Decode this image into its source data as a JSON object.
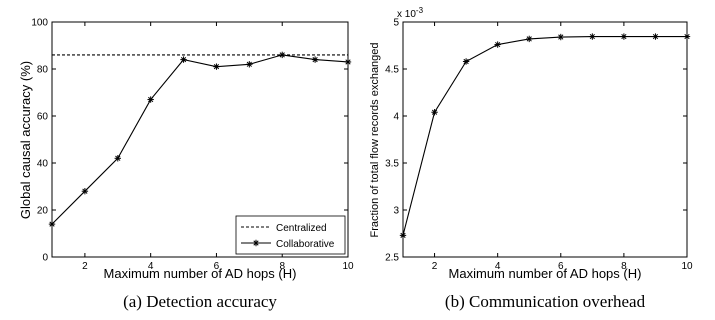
{
  "chart_data": [
    {
      "type": "line",
      "caption": "(a) Detection accuracy",
      "xlabel": "Maximum number of AD hops (H)",
      "ylabel": "Global causal accuracy (%)",
      "xlim": [
        1,
        10
      ],
      "ylim": [
        0,
        100
      ],
      "xticks": [
        "2",
        "4",
        "6",
        "8",
        "10"
      ],
      "yticks": [
        "0",
        "20",
        "40",
        "60",
        "80",
        "100"
      ],
      "legend_position": "bottom-right",
      "series": [
        {
          "name": "Centralized",
          "style": "dashed",
          "x": [
            1,
            10
          ],
          "values": [
            86,
            86
          ]
        },
        {
          "name": "Collaborative",
          "style": "solid-star",
          "x": [
            1,
            2,
            3,
            4,
            5,
            6,
            7,
            8,
            9,
            10
          ],
          "values": [
            14,
            28,
            42,
            67,
            84,
            81,
            82,
            86,
            84,
            83
          ]
        }
      ]
    },
    {
      "type": "line",
      "caption": "(b) Communication overhead",
      "xlabel": "Maximum number of AD hops (H)",
      "ylabel": "Fraction of total flow records exchanged",
      "exponent_label": "x 10",
      "exponent_power": "-3",
      "xlim": [
        1,
        10
      ],
      "ylim": [
        2.5,
        5
      ],
      "xticks": [
        "2",
        "4",
        "6",
        "8",
        "10"
      ],
      "yticks": [
        "2.5",
        "3",
        "3.5",
        "4",
        "4.5",
        "5"
      ],
      "series": [
        {
          "style": "solid-star",
          "x": [
            1,
            2,
            3,
            4,
            5,
            6,
            7,
            8,
            9,
            10
          ],
          "values": [
            2.73,
            4.04,
            4.58,
            4.76,
            4.82,
            4.84,
            4.845,
            4.845,
            4.845,
            4.845
          ]
        }
      ]
    }
  ]
}
